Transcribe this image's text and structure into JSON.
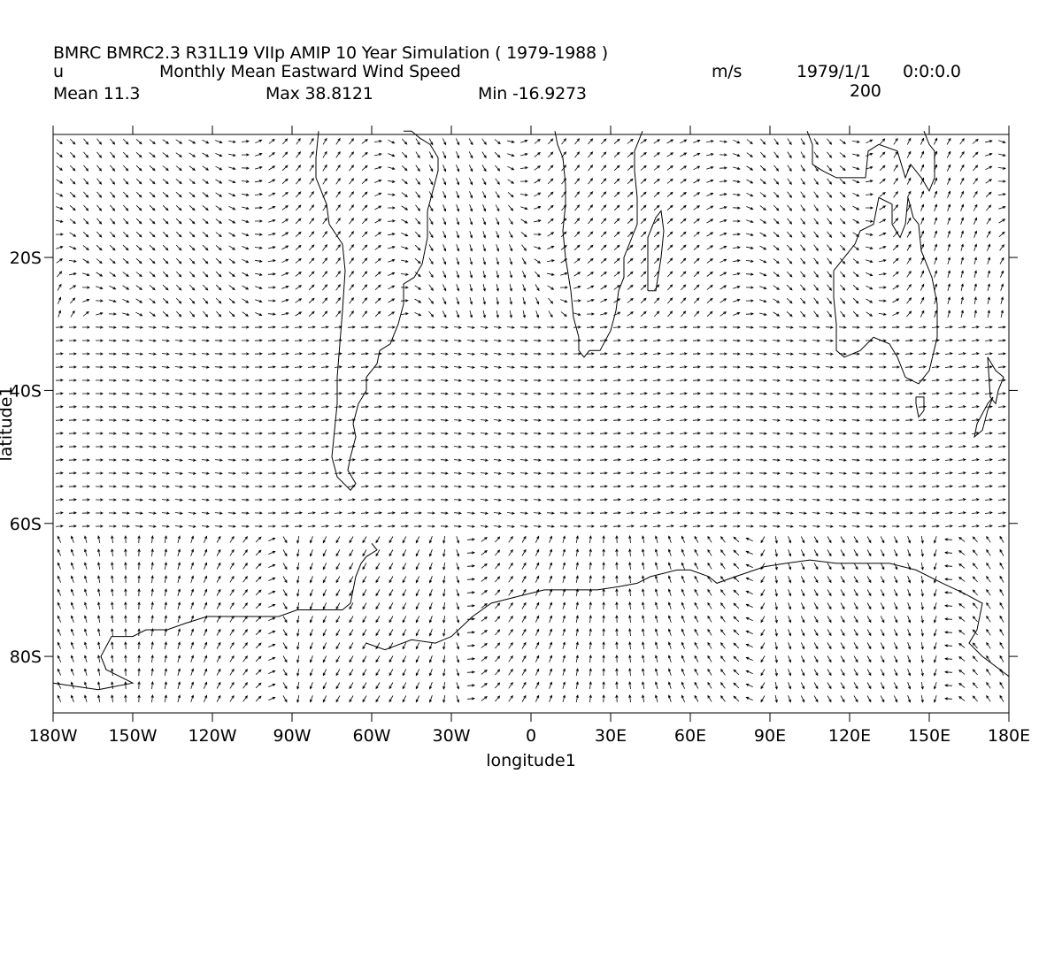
{
  "header": {
    "line1": "BMRC BMRC2.3 R31L19 VIIp AMIP 10 Year Simulation ( 1979-1988 )",
    "variable": "u",
    "long_name": "Monthly Mean Eastward Wind Speed",
    "units": "m/s",
    "date": "1979/1/1",
    "time": "0:0:0.0",
    "level": "200",
    "mean": "Mean 11.3",
    "max": "Max 38.8121",
    "min": "Min -16.9273"
  },
  "axes": {
    "x_label": "longitude1",
    "y_label": "latitude1",
    "x_ticks": [
      "180W",
      "150W",
      "120W",
      "90W",
      "60W",
      "30W",
      "0",
      "30E",
      "60E",
      "90E",
      "120E",
      "150E",
      "180E"
    ],
    "x_tick_values": [
      -180,
      -150,
      -120,
      -90,
      -60,
      -30,
      0,
      30,
      60,
      90,
      120,
      150,
      180
    ],
    "y_ticks": [
      "20S",
      "40S",
      "60S",
      "80S"
    ],
    "y_tick_values": [
      -20,
      -40,
      -60,
      -80
    ],
    "x_range": [
      -180,
      180
    ],
    "y_range": [
      -1.5,
      -88.5
    ]
  },
  "style": {
    "line_color": "#000000",
    "background": "#ffffff"
  },
  "map": {
    "coastlines": [
      [
        [
          -80,
          -1
        ],
        [
          -81,
          -5
        ],
        [
          -81,
          -8
        ],
        [
          -77,
          -12
        ],
        [
          -76,
          -15
        ],
        [
          -71,
          -18
        ],
        [
          -70,
          -22
        ],
        [
          -71,
          -28
        ],
        [
          -72,
          -33
        ],
        [
          -73,
          -38
        ],
        [
          -73,
          -42
        ],
        [
          -74,
          -46
        ],
        [
          -75,
          -50
        ],
        [
          -73,
          -53
        ],
        [
          -68,
          -55
        ],
        [
          -66,
          -54
        ],
        [
          -69,
          -52
        ],
        [
          -68,
          -50
        ],
        [
          -66,
          -47
        ],
        [
          -67,
          -45
        ],
        [
          -65,
          -42
        ],
        [
          -62,
          -40
        ],
        [
          -62,
          -38
        ],
        [
          -58,
          -36
        ],
        [
          -57,
          -34
        ],
        [
          -53,
          -33
        ],
        [
          -50,
          -30
        ],
        [
          -48,
          -27
        ],
        [
          -48,
          -24
        ],
        [
          -44,
          -23
        ],
        [
          -41,
          -21
        ],
        [
          -39,
          -17
        ],
        [
          -39,
          -13
        ],
        [
          -37,
          -10
        ],
        [
          -35,
          -7
        ],
        [
          -35,
          -5
        ],
        [
          -38,
          -3
        ],
        [
          -42,
          -2
        ],
        [
          -45,
          -1
        ],
        [
          -48,
          -1
        ]
      ],
      [
        [
          9,
          -1
        ],
        [
          10,
          -3
        ],
        [
          12,
          -5
        ],
        [
          13,
          -9
        ],
        [
          13,
          -12
        ],
        [
          12,
          -16
        ],
        [
          13,
          -20
        ],
        [
          15,
          -25
        ],
        [
          16,
          -29
        ],
        [
          18,
          -32
        ],
        [
          18,
          -34
        ],
        [
          20,
          -35
        ],
        [
          22,
          -34
        ],
        [
          26,
          -34
        ],
        [
          30,
          -31
        ],
        [
          32,
          -28
        ],
        [
          33,
          -25
        ],
        [
          35,
          -23
        ],
        [
          35,
          -20
        ],
        [
          38,
          -17
        ],
        [
          40,
          -15
        ],
        [
          40,
          -11
        ],
        [
          39,
          -7
        ],
        [
          39,
          -4
        ],
        [
          41,
          -2
        ],
        [
          42,
          -1
        ]
      ],
      [
        [
          44,
          -25
        ],
        [
          47,
          -25
        ],
        [
          49,
          -20
        ],
        [
          50,
          -16
        ],
        [
          49,
          -13
        ],
        [
          47,
          -14
        ],
        [
          44,
          -17
        ],
        [
          44,
          -21
        ],
        [
          44,
          -25
        ]
      ],
      [
        [
          104,
          -1
        ],
        [
          106,
          -3
        ],
        [
          106,
          -6
        ],
        [
          110,
          -7
        ],
        [
          115,
          -8
        ],
        [
          120,
          -8
        ],
        [
          126,
          -8
        ],
        [
          127,
          -4
        ],
        [
          131,
          -3
        ],
        [
          138,
          -4
        ],
        [
          141,
          -8
        ],
        [
          143,
          -6
        ],
        [
          147,
          -8
        ],
        [
          150,
          -10
        ],
        [
          152,
          -8
        ],
        [
          152,
          -4
        ],
        [
          150,
          -3
        ],
        [
          148,
          -1
        ]
      ],
      [
        [
          114,
          -22
        ],
        [
          114,
          -26
        ],
        [
          115,
          -30
        ],
        [
          115,
          -34
        ],
        [
          118,
          -35
        ],
        [
          124,
          -34
        ],
        [
          129,
          -32
        ],
        [
          135,
          -33
        ],
        [
          138,
          -35
        ],
        [
          141,
          -38
        ],
        [
          146,
          -39
        ],
        [
          150,
          -37
        ],
        [
          153,
          -32
        ],
        [
          153,
          -27
        ],
        [
          151,
          -23
        ],
        [
          147,
          -19
        ],
        [
          146,
          -15
        ],
        [
          144,
          -14
        ],
        [
          142,
          -11
        ],
        [
          141,
          -15
        ],
        [
          139,
          -17
        ],
        [
          136,
          -15
        ],
        [
          136,
          -12
        ],
        [
          131,
          -11
        ],
        [
          129,
          -15
        ],
        [
          124,
          -16
        ],
        [
          122,
          -18
        ],
        [
          118,
          -20
        ],
        [
          114,
          -22
        ]
      ],
      [
        [
          145,
          -41
        ],
        [
          148,
          -41
        ],
        [
          148,
          -43
        ],
        [
          146,
          -44
        ],
        [
          145,
          -42
        ],
        [
          145,
          -41
        ]
      ],
      [
        [
          172,
          -35
        ],
        [
          175,
          -37
        ],
        [
          178,
          -38
        ],
        [
          176,
          -40
        ],
        [
          175,
          -42
        ],
        [
          173,
          -41
        ],
        [
          172,
          -35
        ]
      ],
      [
        [
          174,
          -41
        ],
        [
          172,
          -42
        ],
        [
          168,
          -45
        ],
        [
          167,
          -47
        ],
        [
          170,
          -46
        ],
        [
          172,
          -43
        ],
        [
          174,
          -41
        ]
      ],
      [
        [
          -60,
          -63
        ],
        [
          -58,
          -64
        ],
        [
          -62,
          -65
        ],
        [
          -64,
          -66
        ],
        [
          -66,
          -68
        ],
        [
          -67,
          -70
        ],
        [
          -68,
          -72
        ],
        [
          -71,
          -73
        ],
        [
          -75,
          -73
        ],
        [
          -80,
          -73
        ],
        [
          -88,
          -73
        ],
        [
          -95,
          -74
        ],
        [
          -100,
          -74
        ],
        [
          -108,
          -74
        ],
        [
          -115,
          -74
        ],
        [
          -122,
          -74
        ],
        [
          -130,
          -75
        ],
        [
          -137,
          -76
        ],
        [
          -145,
          -76
        ],
        [
          -150,
          -77
        ],
        [
          -158,
          -77
        ],
        [
          -162,
          -80
        ],
        [
          -160,
          -82
        ],
        [
          -150,
          -84
        ],
        [
          -163,
          -85
        ],
        [
          -180,
          -84
        ]
      ],
      [
        [
          -62,
          -78
        ],
        [
          -55,
          -79
        ],
        [
          -45,
          -77.5
        ],
        [
          -36,
          -78
        ],
        [
          -30,
          -77
        ],
        [
          -22,
          -74
        ],
        [
          -15,
          -72
        ],
        [
          -5,
          -71
        ],
        [
          5,
          -70
        ],
        [
          15,
          -70
        ],
        [
          25,
          -70
        ],
        [
          33,
          -69.5
        ],
        [
          40,
          -69
        ],
        [
          45,
          -68
        ],
        [
          55,
          -67
        ],
        [
          60,
          -67
        ],
        [
          67,
          -68
        ],
        [
          70,
          -69
        ],
        [
          77,
          -68
        ],
        [
          88,
          -66.5
        ],
        [
          96,
          -66
        ],
        [
          105,
          -65.5
        ],
        [
          115,
          -66
        ],
        [
          125,
          -66
        ],
        [
          135,
          -66
        ],
        [
          145,
          -67
        ],
        [
          155,
          -69
        ],
        [
          163,
          -70.5
        ],
        [
          170,
          -72
        ],
        [
          168,
          -76
        ],
        [
          165,
          -78
        ],
        [
          170,
          -80
        ],
        [
          180,
          -83
        ]
      ]
    ]
  }
}
